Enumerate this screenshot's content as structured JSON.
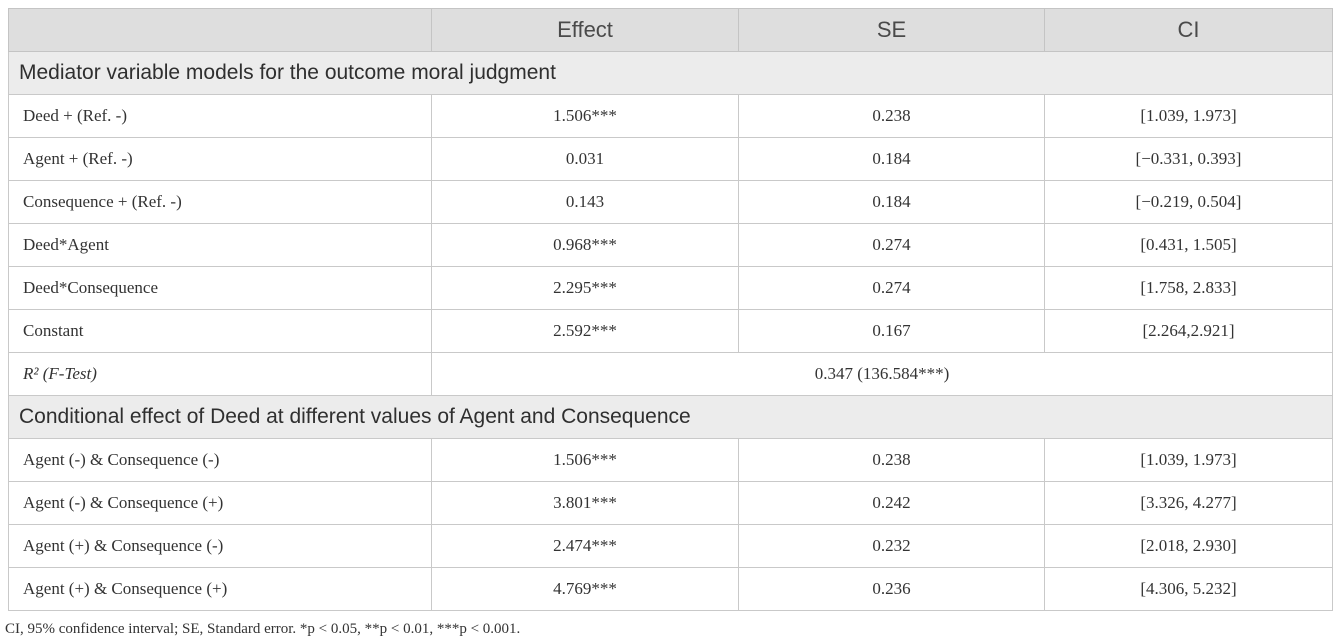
{
  "header": {
    "col0": "",
    "effect": "Effect",
    "se": "SE",
    "ci": "CI"
  },
  "section1": {
    "title": "Mediator variable models for the outcome moral judgment",
    "rows": [
      {
        "label": "Deed + (Ref. -)",
        "effect": "1.506***",
        "se": "0.238",
        "ci": "[1.039, 1.973]"
      },
      {
        "label": "Agent + (Ref. -)",
        "effect": "0.031",
        "se": "0.184",
        "ci": "[−0.331, 0.393]"
      },
      {
        "label": "Consequence + (Ref. -)",
        "effect": "0.143",
        "se": "0.184",
        "ci": "[−0.219, 0.504]"
      },
      {
        "label": "Deed*Agent",
        "effect": "0.968***",
        "se": "0.274",
        "ci": "[0.431, 1.505]"
      },
      {
        "label": "Deed*Consequence",
        "effect": "2.295***",
        "se": "0.274",
        "ci": "[1.758, 2.833]"
      },
      {
        "label": "Constant",
        "effect": "2.592***",
        "se": "0.167",
        "ci": "[2.264,2.921]"
      }
    ],
    "r2": {
      "label_main": "R²",
      "label_test": "(F-Test)",
      "value": "0.347 (136.584***)"
    }
  },
  "section2": {
    "title": "Conditional effect of Deed at different values of Agent and Consequence",
    "rows": [
      {
        "label": "Agent (-) & Consequence (-)",
        "effect": "1.506***",
        "se": "0.238",
        "ci": "[1.039, 1.973]"
      },
      {
        "label": "Agent (-) & Consequence (+)",
        "effect": "3.801***",
        "se": "0.242",
        "ci": "[3.326, 4.277]"
      },
      {
        "label": "Agent (+) & Consequence (-)",
        "effect": "2.474***",
        "se": "0.232",
        "ci": "[2.018, 2.930]"
      },
      {
        "label": "Agent (+) & Consequence (+)",
        "effect": "4.769***",
        "se": "0.236",
        "ci": "[4.306, 5.232]"
      }
    ]
  },
  "footnote": "CI, 95% confidence interval; SE, Standard error. *p < 0.05, **p < 0.01, ***p < 0.001."
}
